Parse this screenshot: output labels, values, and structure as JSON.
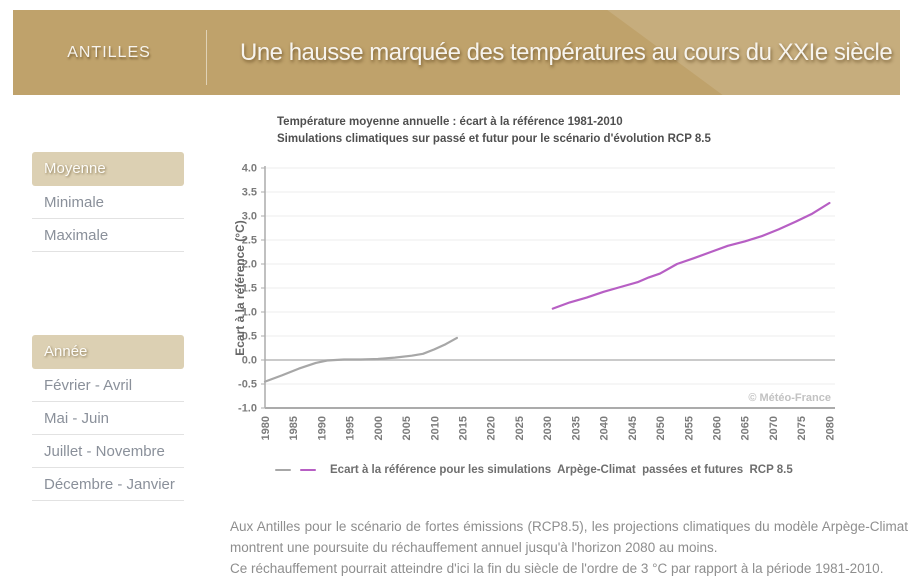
{
  "header": {
    "region": "ANTILLES",
    "title": "Une hausse marquée des températures au cours du XXIe siècle",
    "background_color": "#bfa26b"
  },
  "sidebar": {
    "groups": [
      {
        "items": [
          {
            "label": "Moyenne",
            "selected": true
          },
          {
            "label": "Minimale",
            "selected": false
          },
          {
            "label": "Maximale",
            "selected": false
          }
        ]
      },
      {
        "items": [
          {
            "label": "Année",
            "selected": true
          },
          {
            "label": "Février - Avril",
            "selected": false
          },
          {
            "label": "Mai - Juin",
            "selected": false
          },
          {
            "label": "Juillet - Novembre",
            "selected": false
          },
          {
            "label": "Décembre - Janvier",
            "selected": false
          }
        ]
      }
    ],
    "selected_background": "#dcd0b3"
  },
  "chart_data": {
    "type": "line",
    "title": "Température moyenne annuelle : écart à la référence 1981-2010",
    "subtitle": "Simulations climatiques sur passé et futur pour le scénario d'évolution RCP 8.5",
    "ylabel": "Ecart à la référence (°C)",
    "ylim": [
      -1.0,
      4.0
    ],
    "ytick_step": 0.5,
    "xlim": [
      1980,
      2081
    ],
    "xticks": [
      1980,
      1985,
      1990,
      1995,
      2000,
      2005,
      2010,
      2015,
      2020,
      2025,
      2030,
      2035,
      2040,
      2045,
      2050,
      2055,
      2060,
      2065,
      2070,
      2075,
      2080
    ],
    "grid": true,
    "series": [
      {
        "name": "simulations passées",
        "color": "#a7a7a7",
        "points": [
          [
            1980,
            -0.45
          ],
          [
            1983,
            -0.32
          ],
          [
            1986,
            -0.18
          ],
          [
            1989,
            -0.06
          ],
          [
            1991,
            -0.01
          ],
          [
            1994,
            0.01
          ],
          [
            1997,
            0.01
          ],
          [
            2000,
            0.02
          ],
          [
            2003,
            0.05
          ],
          [
            2006,
            0.09
          ],
          [
            2008,
            0.13
          ],
          [
            2010,
            0.22
          ],
          [
            2012,
            0.33
          ],
          [
            2014,
            0.46
          ]
        ]
      },
      {
        "name": "simulations futures RCP 8.5",
        "color": "#b75fc4",
        "points": [
          [
            2031,
            1.07
          ],
          [
            2034,
            1.2
          ],
          [
            2037,
            1.3
          ],
          [
            2040,
            1.42
          ],
          [
            2043,
            1.52
          ],
          [
            2046,
            1.62
          ],
          [
            2048,
            1.72
          ],
          [
            2050,
            1.8
          ],
          [
            2053,
            2.0
          ],
          [
            2056,
            2.12
          ],
          [
            2059,
            2.25
          ],
          [
            2062,
            2.38
          ],
          [
            2065,
            2.47
          ],
          [
            2068,
            2.58
          ],
          [
            2071,
            2.72
          ],
          [
            2074,
            2.88
          ],
          [
            2077,
            3.05
          ],
          [
            2080,
            3.27
          ]
        ]
      }
    ],
    "legend": "Ecart à la référence pour les simulations  Arpège-Climat  passées et futures  RCP 8.5",
    "legend_position": "bottom",
    "watermark": "© Météo-France"
  },
  "footer": {
    "paragraphs": [
      "Aux Antilles pour le scénario de fortes émissions (RCP8.5), les projections climatiques du modèle Arpège-Climat montrent une poursuite du réchauffement annuel jusqu'à l'horizon 2080 au moins.",
      "Ce réchauffement pourrait atteindre d'ici la fin du siècle de l'ordre de 3 °C par rapport à la période 1981-2010."
    ]
  }
}
